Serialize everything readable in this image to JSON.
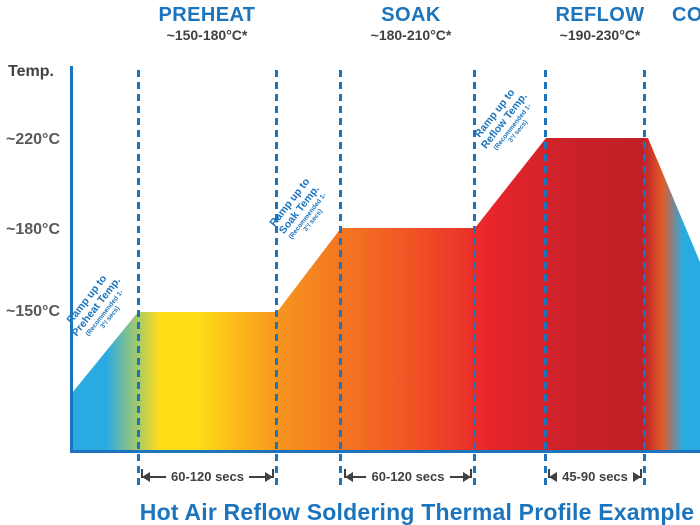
{
  "title": "Hot Air Reflow Soldering Thermal Profile Example",
  "y_axis": {
    "label": "Temp.",
    "ticks": [
      "~220°C",
      "~180°C",
      "~150°C"
    ]
  },
  "phases": [
    {
      "name": "PREHEAT",
      "range": "~150-180°C*"
    },
    {
      "name": "SOAK",
      "range": "~180-210°C*"
    },
    {
      "name": "REFLOW",
      "range": "~190-230°C*"
    },
    {
      "name": "COOL",
      "range": ""
    }
  ],
  "ramps": [
    {
      "line1": "Ramp up to",
      "line2": "Preheat Temp.",
      "note": "(Recommended 1-3°/ secs)"
    },
    {
      "line1": "Ramp up to",
      "line2": "Soak Temp.",
      "note": "(Recommended 1-3°/ secs)"
    },
    {
      "line1": "Ramp up to",
      "line2": "Reflow Temp.",
      "note": "(Recommended 1-3°/ secs)"
    }
  ],
  "durations": [
    "60-120 secs",
    "60-120 secs",
    "45-90 secs"
  ],
  "colors": {
    "accent_blue": "#1c74bc",
    "profile_cyan": "#29abe2",
    "profile_yellow": "#ffde17",
    "profile_orange": "#f7941e",
    "profile_red": "#e8252b",
    "profile_dark_red": "#c02027",
    "text_gray": "#414042"
  },
  "chart_data": {
    "type": "area",
    "title": "Hot Air Reflow Soldering Thermal Profile Example",
    "ylabel": "Temp.",
    "y_ticks": [
      "~220°C",
      "~180°C",
      "~150°C"
    ],
    "x_axis_note": "time in seconds, schematic (no numeric x ticks shown)",
    "grid": "none",
    "legend": "none",
    "phases": [
      {
        "name": "PREHEAT",
        "temp_range": "~150-180°C*",
        "duration": "60-120 secs",
        "plateau_temp_c": 150
      },
      {
        "name": "SOAK",
        "temp_range": "~180-210°C*",
        "duration": "60-120 secs",
        "plateau_temp_c": 180
      },
      {
        "name": "REFLOW",
        "temp_range": "~190-230°C*",
        "duration": "45-90 secs",
        "plateau_temp_c": 220
      },
      {
        "name": "COOL",
        "temp_range": "",
        "duration": "",
        "plateau_temp_c": null
      }
    ],
    "ramp_rate_recommendation": "1-3°/ secs",
    "profile_points_pct_time_vs_temp_c": [
      [
        0,
        120
      ],
      [
        10.5,
        150
      ],
      [
        32.6,
        150
      ],
      [
        42.8,
        180
      ],
      [
        64.2,
        180
      ],
      [
        75.5,
        220
      ],
      [
        91.7,
        220
      ],
      [
        100,
        170
      ]
    ]
  }
}
